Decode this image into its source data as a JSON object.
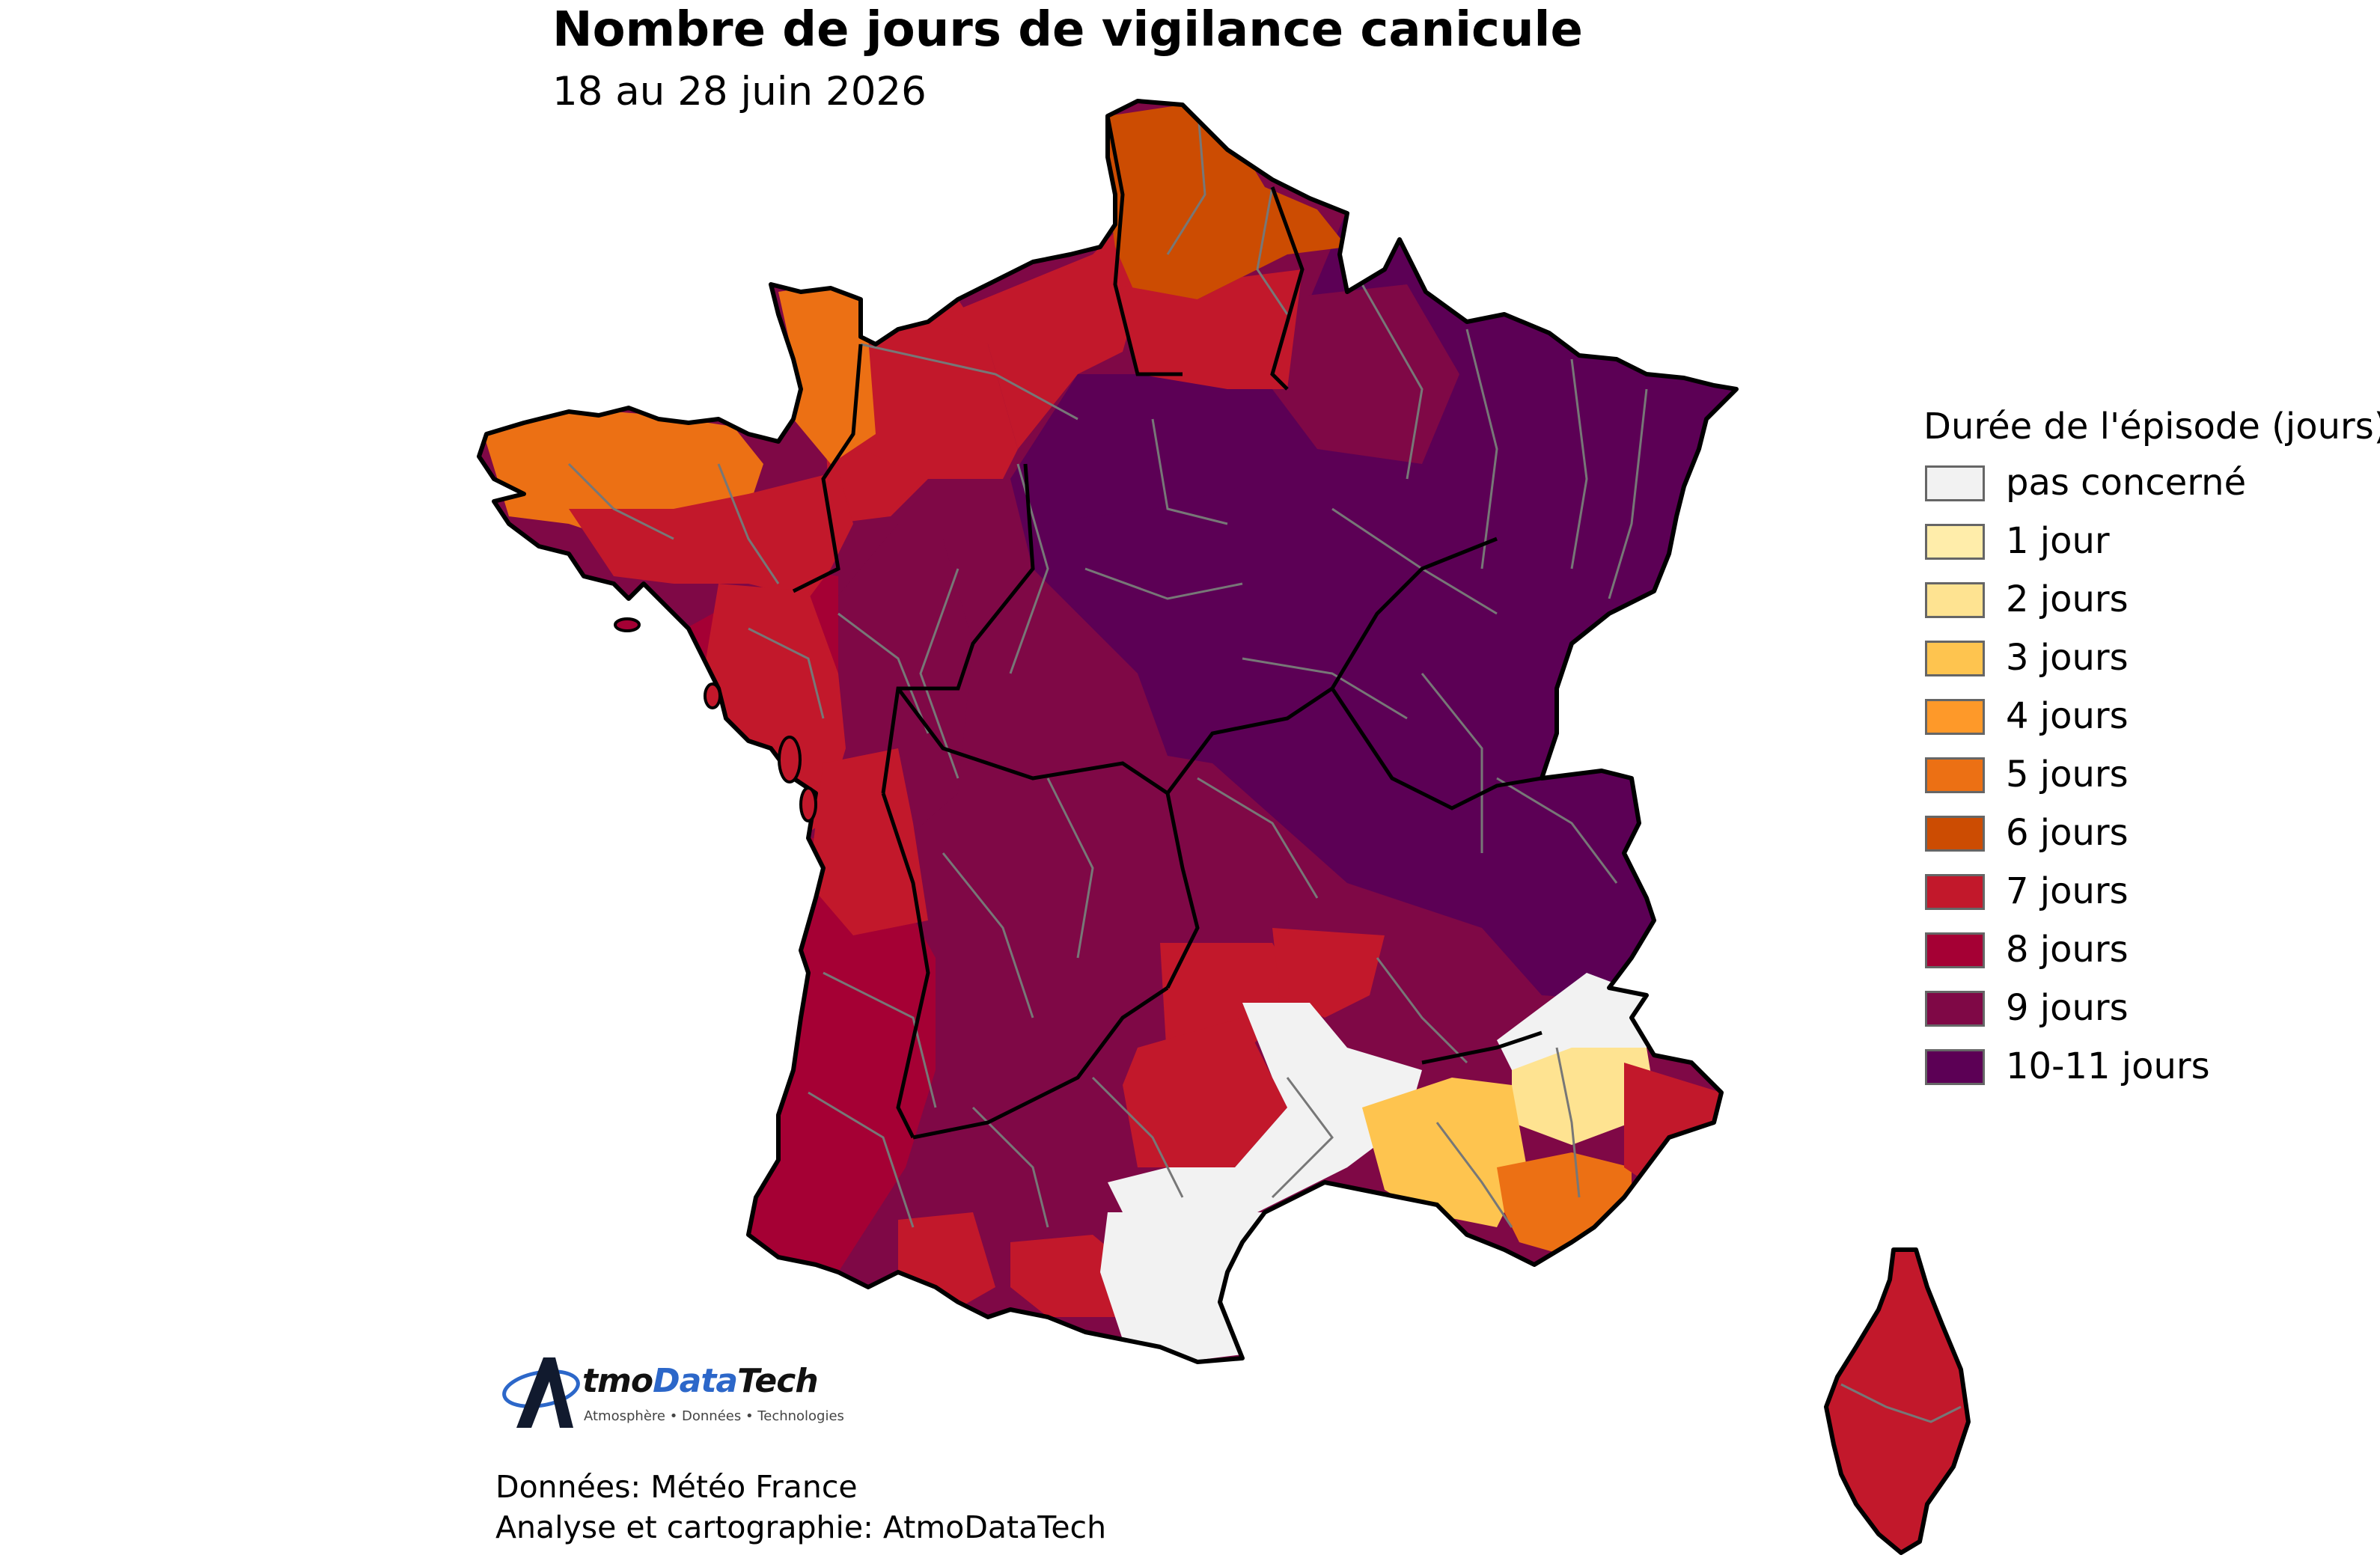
{
  "title": "Nombre de jours de vigilance canicule",
  "subtitle": "18 au 28 juin 2026",
  "legend": {
    "title": "Durée de l'épisode (jours)",
    "items": [
      {
        "label": "pas concerné",
        "color": "#f2f2f2"
      },
      {
        "label": "1 jour",
        "color": "#ffedaa"
      },
      {
        "label": "2 jours",
        "color": "#fee391"
      },
      {
        "label": "3 jours",
        "color": "#fec44f"
      },
      {
        "label": "4 jours",
        "color": "#fe9929"
      },
      {
        "label": "5 jours",
        "color": "#ec7014"
      },
      {
        "label": "6 jours",
        "color": "#cc4c02"
      },
      {
        "label": "7 jours",
        "color": "#c2182b"
      },
      {
        "label": "8 jours",
        "color": "#a50034"
      },
      {
        "label": "9 jours",
        "color": "#7f0846"
      },
      {
        "label": "10-11 jours",
        "color": "#5c0055"
      }
    ]
  },
  "logo": {
    "name_lead": "tmo",
    "name_accent": "Data",
    "name_tail": "Tech",
    "tagline": "Atmosphère • Données • Technologies"
  },
  "credits": {
    "source": "Données: Météo France",
    "author": "Analyse et cartographie: AtmoDataTech"
  }
}
